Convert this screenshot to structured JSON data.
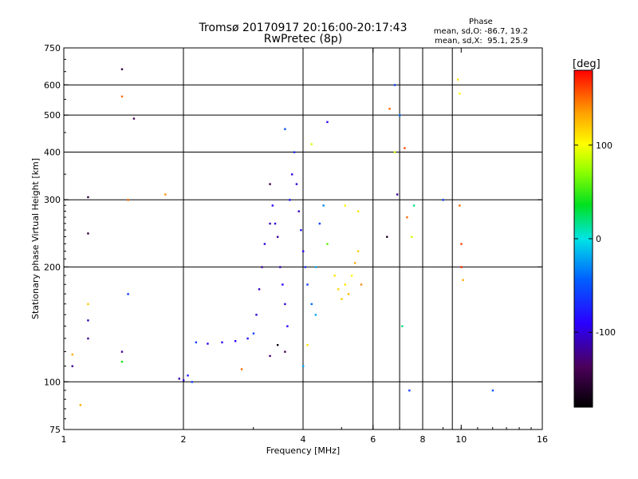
{
  "header": {
    "title_line1": "Tromsø 20170917 20:16:00-20:17:43",
    "title_line2": "RwPretec (8p)"
  },
  "phase_stats": {
    "title": "Phase",
    "line_o": "mean, sd,O: -86.7, 19.2",
    "line_x": "mean, sd,X:  95.1, 25.9"
  },
  "colorbar": {
    "label": "[deg]",
    "min": -180,
    "max": 180,
    "ticks": [
      {
        "value": 100,
        "label": "100"
      },
      {
        "value": 0,
        "label": "0"
      },
      {
        "value": -100,
        "label": "-100"
      }
    ]
  },
  "chart_data": {
    "type": "scatter",
    "title": "Tromsø 20170917 20:16:00-20:17:43",
    "subtitle": "RwPretec (8p)",
    "xlabel": "Frequency [MHz]",
    "ylabel": "Stationary phase Virtual Height [km]",
    "x_scale": "log",
    "y_scale": "log",
    "xlim": [
      1,
      16
    ],
    "ylim": [
      75,
      750
    ],
    "grid": true,
    "x_ticks": [
      {
        "value": 1,
        "label": "1"
      },
      {
        "value": 2,
        "label": "2"
      },
      {
        "value": 4,
        "label": "4"
      },
      {
        "value": 6,
        "label": "6"
      },
      {
        "value": 8,
        "label": "8"
      },
      {
        "value": 10,
        "label": "10"
      },
      {
        "value": 16,
        "label": "16"
      }
    ],
    "x_grid": [
      2,
      4,
      6,
      7,
      8,
      9.5
    ],
    "y_ticks": [
      {
        "value": 75,
        "label": "75"
      },
      {
        "value": 100,
        "label": "100"
      },
      {
        "value": 200,
        "label": "200"
      },
      {
        "value": 300,
        "label": "300"
      },
      {
        "value": 400,
        "label": "400"
      },
      {
        "value": 500,
        "label": "500"
      },
      {
        "value": 600,
        "label": "600"
      },
      {
        "value": 750,
        "label": "750"
      }
    ],
    "color_by": "phase [deg]",
    "points": [
      [
        1.05,
        110,
        -120
      ],
      [
        1.15,
        305,
        -150
      ],
      [
        1.15,
        245,
        -160
      ],
      [
        1.15,
        160,
        120
      ],
      [
        1.15,
        145,
        -110
      ],
      [
        1.15,
        130,
        -120
      ],
      [
        1.4,
        660,
        -150
      ],
      [
        1.4,
        560,
        150
      ],
      [
        1.5,
        490,
        -140
      ],
      [
        1.45,
        300,
        150
      ],
      [
        1.45,
        170,
        -60
      ],
      [
        1.4,
        120,
        -120
      ],
      [
        1.4,
        113,
        40
      ],
      [
        1.8,
        310,
        140
      ],
      [
        1.1,
        87,
        130
      ],
      [
        1.05,
        118,
        130
      ],
      [
        1.95,
        102,
        -110
      ],
      [
        2.0,
        101,
        -100
      ],
      [
        2.05,
        104,
        -80
      ],
      [
        2.1,
        100,
        -60
      ],
      [
        2.15,
        127,
        -60
      ],
      [
        2.3,
        126,
        -90
      ],
      [
        2.5,
        127,
        -100
      ],
      [
        2.7,
        128,
        -90
      ],
      [
        2.9,
        130,
        -80
      ],
      [
        3.0,
        134,
        -60
      ],
      [
        3.05,
        150,
        -100
      ],
      [
        3.1,
        175,
        -110
      ],
      [
        3.15,
        200,
        -120
      ],
      [
        3.2,
        230,
        -100
      ],
      [
        3.3,
        260,
        -110
      ],
      [
        3.35,
        290,
        -90
      ],
      [
        3.4,
        260,
        -100
      ],
      [
        3.45,
        240,
        -120
      ],
      [
        3.5,
        200,
        -110
      ],
      [
        3.55,
        180,
        -90
      ],
      [
        3.6,
        160,
        -100
      ],
      [
        3.65,
        140,
        -90
      ],
      [
        3.7,
        300,
        -80
      ],
      [
        3.75,
        350,
        -100
      ],
      [
        3.8,
        400,
        -70
      ],
      [
        3.85,
        330,
        -100
      ],
      [
        3.9,
        280,
        -110
      ],
      [
        3.95,
        250,
        -80
      ],
      [
        4.0,
        220,
        -90
      ],
      [
        4.05,
        200,
        -70
      ],
      [
        4.1,
        180,
        -60
      ],
      [
        4.2,
        160,
        -40
      ],
      [
        4.3,
        150,
        -20
      ],
      [
        4.4,
        260,
        -60
      ],
      [
        4.5,
        290,
        -30
      ],
      [
        4.3,
        200,
        -20
      ],
      [
        4.6,
        230,
        60
      ],
      [
        4.8,
        190,
        110
      ],
      [
        4.9,
        175,
        115
      ],
      [
        5.0,
        165,
        120
      ],
      [
        5.1,
        180,
        110
      ],
      [
        5.2,
        170,
        125
      ],
      [
        5.3,
        190,
        100
      ],
      [
        5.4,
        205,
        130
      ],
      [
        5.5,
        220,
        120
      ],
      [
        5.6,
        180,
        140
      ],
      [
        5.1,
        290,
        100
      ],
      [
        5.5,
        280,
        110
      ],
      [
        4.1,
        125,
        110
      ],
      [
        4.0,
        110,
        -20
      ],
      [
        3.3,
        117,
        -130
      ],
      [
        2.8,
        108,
        150
      ],
      [
        6.8,
        600,
        -60
      ],
      [
        6.6,
        520,
        150
      ],
      [
        7.0,
        500,
        -40
      ],
      [
        6.8,
        400,
        90
      ],
      [
        7.2,
        410,
        160
      ],
      [
        6.9,
        310,
        -120
      ],
      [
        7.3,
        270,
        150
      ],
      [
        7.5,
        240,
        90
      ],
      [
        7.6,
        290,
        20
      ],
      [
        7.1,
        140,
        20
      ],
      [
        7.4,
        95,
        -60
      ],
      [
        9.0,
        300,
        -60
      ],
      [
        9.8,
        620,
        110
      ],
      [
        9.9,
        570,
        100
      ],
      [
        9.9,
        290,
        150
      ],
      [
        10.0,
        230,
        160
      ],
      [
        10.0,
        200,
        170
      ],
      [
        10.1,
        185,
        130
      ],
      [
        12.0,
        95,
        -50
      ],
      [
        6.5,
        240,
        -160
      ],
      [
        4.6,
        480,
        -90
      ],
      [
        3.6,
        460,
        -50
      ],
      [
        4.2,
        420,
        90
      ],
      [
        3.3,
        330,
        -150
      ],
      [
        3.6,
        120,
        -140
      ],
      [
        3.45,
        125,
        -170
      ]
    ]
  }
}
